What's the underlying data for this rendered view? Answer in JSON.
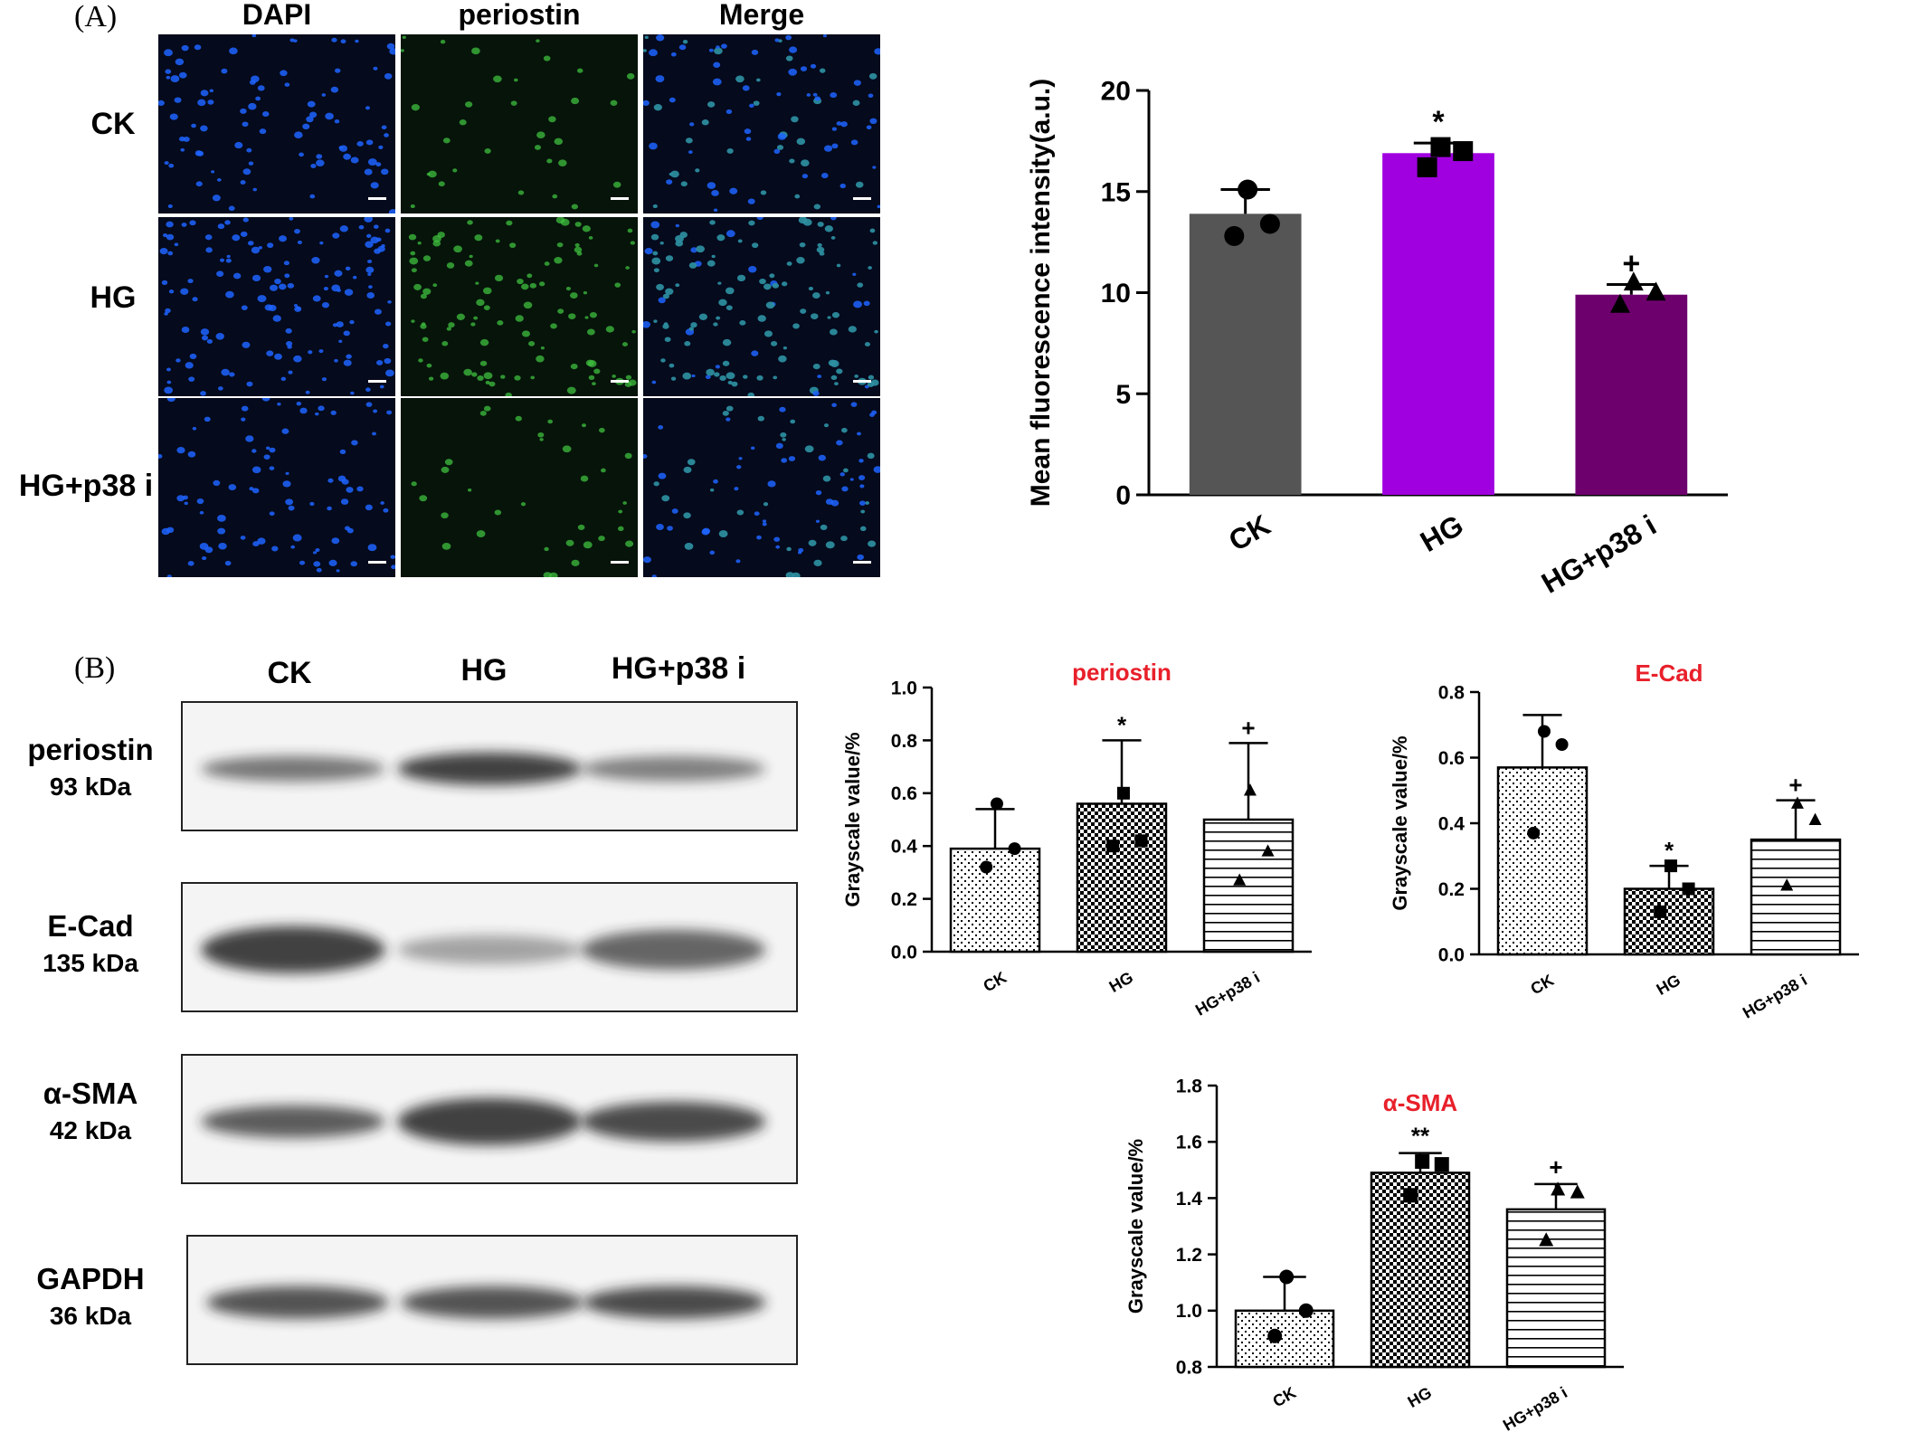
{
  "panel_a": {
    "label": "(A)",
    "columns": [
      "DAPI",
      "periostin",
      "Merge"
    ],
    "rows": [
      "CK",
      "HG",
      "HG+p38 i"
    ]
  },
  "panel_b": {
    "label": "(B)",
    "lanes": [
      "CK",
      "HG",
      "HG+p38 i"
    ],
    "blots": [
      {
        "name": "periostin",
        "kda": "93 kDa"
      },
      {
        "name": "E-Cad",
        "kda": "135 kDa"
      },
      {
        "name": "α-SMA",
        "kda": "42 kDa"
      },
      {
        "name": "GAPDH",
        "kda": "36 kDa"
      }
    ]
  },
  "colors": {
    "ck_bar": "#555555",
    "hg_bar": "#a000e0",
    "p38_bar": "#6e006e",
    "title_red": "#e8202a",
    "dapi_blue": "#1e64ff",
    "periostin_green": "#3fbf3f"
  },
  "chart_data": [
    {
      "type": "bar",
      "title": "",
      "categories": [
        "CK",
        "HG",
        "HG+p38 i"
      ],
      "values": [
        13.9,
        16.9,
        9.9
      ],
      "errors": [
        1.2,
        0.5,
        0.5
      ],
      "points": [
        [
          15.1,
          13.4,
          12.8
        ],
        [
          17.2,
          17.0,
          16.2
        ],
        [
          10.5,
          10.0,
          9.4
        ]
      ],
      "markers": [
        "circle",
        "square",
        "triangle"
      ],
      "significance": [
        "",
        "*",
        "+"
      ],
      "ylabel": "Mean fluorescence intensity(a.u.)",
      "xlabel": "",
      "ylim": [
        0,
        20
      ],
      "yticks": [
        "0",
        "5",
        "10",
        "15",
        "20"
      ],
      "fill": "solid"
    },
    {
      "type": "bar",
      "title": "periostin",
      "categories": [
        "CK",
        "HG",
        "HG+p38 i"
      ],
      "values": [
        0.39,
        0.56,
        0.5
      ],
      "errors": [
        0.15,
        0.24,
        0.29
      ],
      "points": [
        [
          0.56,
          0.39,
          0.32
        ],
        [
          0.6,
          0.42,
          0.4
        ],
        [
          0.61,
          0.38,
          0.27
        ]
      ],
      "markers": [
        "circle",
        "square",
        "triangle"
      ],
      "significance": [
        "",
        "*",
        "+"
      ],
      "ylabel": "Grayscale value/%",
      "xlabel": "",
      "ylim": [
        0,
        1.0
      ],
      "yticks": [
        "0.0",
        "0.2",
        "0.4",
        "0.6",
        "0.8",
        "1.0"
      ],
      "fill": "pattern"
    },
    {
      "type": "bar",
      "title": "E-Cad",
      "categories": [
        "CK",
        "HG",
        "HG+p38 i"
      ],
      "values": [
        0.57,
        0.2,
        0.35
      ],
      "errors": [
        0.16,
        0.07,
        0.12
      ],
      "points": [
        [
          0.68,
          0.64,
          0.37
        ],
        [
          0.27,
          0.2,
          0.13
        ],
        [
          0.46,
          0.41,
          0.21
        ]
      ],
      "markers": [
        "circle",
        "square",
        "triangle"
      ],
      "significance": [
        "",
        "*",
        "+"
      ],
      "ylabel": "Grayscale value/%",
      "xlabel": "",
      "ylim": [
        0,
        0.8
      ],
      "yticks": [
        "0.0",
        "0.2",
        "0.4",
        "0.6",
        "0.8"
      ],
      "fill": "pattern"
    },
    {
      "type": "bar",
      "title": "α-SMA",
      "categories": [
        "CK",
        "HG",
        "HG+p38 i"
      ],
      "values": [
        1.0,
        1.49,
        1.36
      ],
      "errors": [
        0.12,
        0.07,
        0.09
      ],
      "points": [
        [
          1.12,
          1.0,
          0.91
        ],
        [
          1.53,
          1.52,
          1.41
        ],
        [
          1.43,
          1.42,
          1.25
        ]
      ],
      "markers": [
        "circle",
        "square",
        "triangle"
      ],
      "significance": [
        "",
        "**",
        "+"
      ],
      "ylabel": "Grayscale value/%",
      "xlabel": "",
      "ylim": [
        0.8,
        1.8
      ],
      "yticks": [
        "0.8",
        "1.0",
        "1.2",
        "1.4",
        "1.6",
        "1.8"
      ],
      "fill": "pattern"
    }
  ]
}
